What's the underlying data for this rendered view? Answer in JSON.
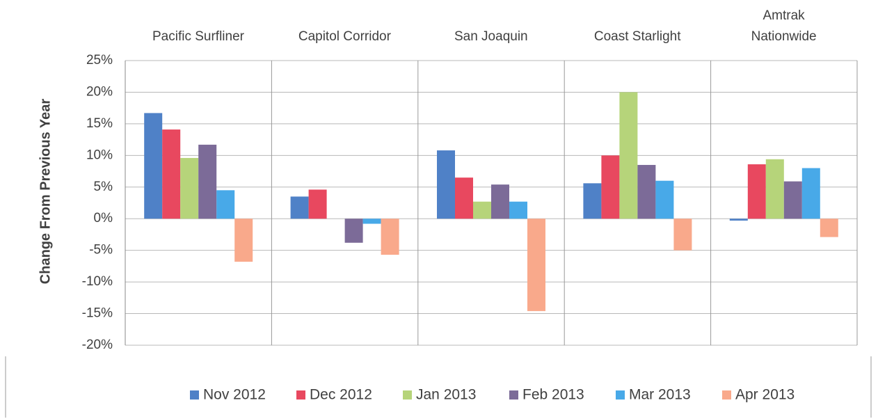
{
  "chart_data": {
    "type": "bar",
    "y_label": "Change From Previous Year",
    "categories": [
      "Pacific Surfliner",
      "Capitol Corridor",
      "San Joaquin",
      "Coast Starlight",
      "Amtrak\nNationwide"
    ],
    "series": [
      {
        "name": "Nov 2012",
        "color": "#4f81c7",
        "values": [
          16.7,
          3.5,
          10.8,
          5.6,
          -0.3
        ]
      },
      {
        "name": "Dec 2012",
        "color": "#e8485f",
        "values": [
          14.1,
          4.6,
          6.5,
          10,
          8.6
        ]
      },
      {
        "name": "Jan 2013",
        "color": "#b6d47a",
        "values": [
          9.6,
          null,
          2.7,
          20,
          9.4
        ]
      },
      {
        "name": "Feb 2013",
        "color": "#7c6b98",
        "values": [
          11.7,
          -3.8,
          5.4,
          8.5,
          5.9
        ]
      },
      {
        "name": "Mar 2013",
        "color": "#48a9e8",
        "values": [
          4.5,
          -0.8,
          2.7,
          6,
          8
        ]
      },
      {
        "name": "Apr 2013",
        "color": "#f9a98b",
        "values": [
          -6.8,
          -5.7,
          -14.6,
          -5,
          -2.9
        ]
      }
    ],
    "ylim": [
      -20,
      25
    ],
    "yticks": [
      {
        "value": -20,
        "label": "-20%"
      },
      {
        "value": -15,
        "label": "-15%"
      },
      {
        "value": -10,
        "label": "-10%"
      },
      {
        "value": -5,
        "label": "-5%"
      },
      {
        "value": 0,
        "label": "0%"
      },
      {
        "value": 5,
        "label": "5%"
      },
      {
        "value": 10,
        "label": "10%"
      },
      {
        "value": 15,
        "label": "15%"
      },
      {
        "value": 20,
        "label": "20%"
      },
      {
        "value": 25,
        "label": "25%"
      }
    ],
    "grid": true,
    "legend": "bottom"
  }
}
